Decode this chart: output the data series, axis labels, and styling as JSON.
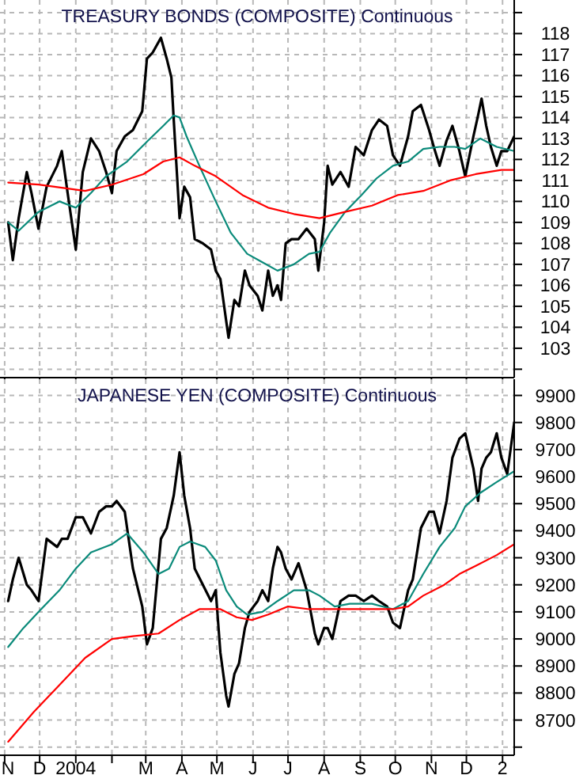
{
  "chart_data": [
    {
      "type": "line",
      "title": "TREASURY BONDS (COMPOSITE) Continuous",
      "x": [
        "2003-11-04",
        "2003-11-08",
        "2003-11-13",
        "2003-11-20",
        "2003-11-24",
        "2003-11-30",
        "2003-12-07",
        "2003-12-16",
        "2003-12-20",
        "2003-12-25",
        "2004-01-01",
        "2004-01-07",
        "2004-01-14",
        "2004-01-21",
        "2004-01-27",
        "2004-02-01",
        "2004-02-05",
        "2004-02-12",
        "2004-02-19",
        "2004-02-27",
        "2004-03-02",
        "2004-03-07",
        "2004-03-14",
        "2004-03-19",
        "2004-03-23",
        "2004-03-25",
        "2004-03-30",
        "2004-04-03",
        "2004-04-08",
        "2004-04-12",
        "2004-04-19",
        "2004-04-26",
        "2004-04-30",
        "2004-05-04",
        "2004-05-09",
        "2004-05-11",
        "2004-05-16",
        "2004-05-20",
        "2004-05-25",
        "2004-05-29",
        "2004-06-05",
        "2004-06-09",
        "2004-06-14",
        "2004-06-18",
        "2004-06-22",
        "2004-06-25",
        "2004-06-29",
        "2004-07-04",
        "2004-07-10",
        "2004-07-17",
        "2004-07-24",
        "2004-07-27",
        "2004-08-01",
        "2004-08-04",
        "2004-08-08",
        "2004-08-15",
        "2004-08-22",
        "2004-08-28",
        "2004-09-04",
        "2004-09-11",
        "2004-09-17",
        "2004-09-24",
        "2004-09-29",
        "2004-10-05",
        "2004-10-12",
        "2004-10-16",
        "2004-10-23",
        "2004-10-30",
        "2004-11-03",
        "2004-11-08",
        "2004-11-14",
        "2004-11-19",
        "2004-11-25",
        "2004-11-30",
        "2004-12-07",
        "2004-12-11",
        "2004-12-14",
        "2004-12-18",
        "2004-12-22",
        "2004-12-27",
        "2004-12-31",
        "2005-01-05",
        "2005-01-11"
      ],
      "series": [
        {
          "color": "#000000",
          "values": [
            109.0,
            107.2,
            109.2,
            111.4,
            110.4,
            108.7,
            110.7,
            111.7,
            112.4,
            110.4,
            107.7,
            111.4,
            113.0,
            112.4,
            111.4,
            110.4,
            112.4,
            113.1,
            113.4,
            114.3,
            116.8,
            117.1,
            117.8,
            116.8,
            115.9,
            113.9,
            109.2,
            110.7,
            110.2,
            108.2,
            108.0,
            107.7,
            106.7,
            106.3,
            104.3,
            103.5,
            105.3,
            105.0,
            106.7,
            106.0,
            105.5,
            104.8,
            106.7,
            105.5,
            106.0,
            105.3,
            108.0,
            108.2,
            108.2,
            108.7,
            108.2,
            106.7,
            109.0,
            111.7,
            110.8,
            111.4,
            110.7,
            112.6,
            112.2,
            113.4,
            113.9,
            113.6,
            112.2,
            111.7,
            113.1,
            114.3,
            114.6,
            113.4,
            112.6,
            111.7,
            112.9,
            113.6,
            112.4,
            111.2,
            113.1,
            114.1,
            114.9,
            113.6,
            112.6,
            111.7,
            112.4,
            112.4,
            113.1
          ]
        },
        {
          "color": "#0a8a7a",
          "x": [
            "2003-11-04",
            "2003-11-13",
            "2003-11-30",
            "2003-12-18",
            "2004-01-01",
            "2004-01-14",
            "2004-01-27",
            "2004-02-14",
            "2004-03-03",
            "2004-03-16",
            "2004-03-25",
            "2004-03-30",
            "2004-04-05",
            "2004-04-16",
            "2004-04-30",
            "2004-05-13",
            "2004-05-27",
            "2004-06-09",
            "2004-06-22",
            "2004-07-06",
            "2004-07-19",
            "2004-07-28",
            "2004-08-06",
            "2004-08-19",
            "2004-09-02",
            "2004-09-15",
            "2004-09-29",
            "2004-10-12",
            "2004-10-25",
            "2004-11-08",
            "2004-11-21",
            "2004-11-30",
            "2004-12-13",
            "2004-12-27",
            "2005-01-11"
          ],
          "values": [
            109.0,
            108.6,
            109.5,
            110.0,
            109.7,
            110.4,
            111.2,
            111.9,
            112.9,
            113.6,
            114.1,
            114.0,
            113.1,
            111.7,
            110.0,
            108.5,
            107.5,
            107.1,
            106.7,
            107.0,
            107.5,
            107.6,
            108.5,
            109.5,
            110.3,
            111.1,
            111.7,
            111.9,
            112.5,
            112.6,
            112.6,
            112.5,
            113.0,
            112.6,
            112.4
          ]
        },
        {
          "color": "#ff0000",
          "x": [
            "2003-11-04",
            "2003-11-30",
            "2004-01-09",
            "2004-02-01",
            "2004-02-28",
            "2004-03-16",
            "2004-03-30",
            "2004-04-12",
            "2004-04-30",
            "2004-05-23",
            "2004-06-14",
            "2004-07-06",
            "2004-07-28",
            "2004-08-19",
            "2004-09-11",
            "2004-10-03",
            "2004-10-25",
            "2004-11-17",
            "2004-12-09",
            "2004-12-31",
            "2005-01-11"
          ],
          "values": [
            110.9,
            110.8,
            110.5,
            110.8,
            111.3,
            111.9,
            112.1,
            111.7,
            111.2,
            110.3,
            109.7,
            109.4,
            109.2,
            109.5,
            109.8,
            110.3,
            110.5,
            111.0,
            111.3,
            111.5,
            111.5
          ]
        }
      ],
      "xlim": [
        "2003-10-28",
        "2005-01-11"
      ],
      "xticks": [
        "2003-11-01",
        "2003-12-01",
        "2004-01-01",
        "2004-02-01",
        "2004-03-01",
        "2004-04-01",
        "2004-05-01",
        "2004-06-01",
        "2004-07-01",
        "2004-08-01",
        "2004-09-01",
        "2004-10-01",
        "2004-11-01",
        "2004-12-01",
        "2005-01-01"
      ],
      "ylim": [
        101.6,
        119.6
      ],
      "yticks": [
        {
          "value": 102,
          "label": null
        },
        103,
        104,
        105,
        106,
        107,
        108,
        109,
        110,
        111,
        112,
        113,
        114,
        115,
        116,
        117,
        118,
        {
          "value": 119,
          "label": null
        }
      ],
      "tick_labels": "y",
      "grid": true
    },
    {
      "type": "line",
      "title": "JAPANESE YEN (COMPOSITE) Continuous",
      "x": [
        "2003-11-04",
        "2003-11-08",
        "2003-11-13",
        "2003-11-20",
        "2003-11-24",
        "2003-11-30",
        "2003-12-07",
        "2003-12-16",
        "2003-12-20",
        "2003-12-25",
        "2004-01-01",
        "2004-01-07",
        "2004-01-14",
        "2004-01-21",
        "2004-01-27",
        "2004-02-01",
        "2004-02-05",
        "2004-02-12",
        "2004-02-19",
        "2004-02-27",
        "2004-03-02",
        "2004-03-07",
        "2004-03-14",
        "2004-03-19",
        "2004-03-23",
        "2004-03-25",
        "2004-03-30",
        "2004-04-03",
        "2004-04-08",
        "2004-04-12",
        "2004-04-19",
        "2004-04-26",
        "2004-04-30",
        "2004-05-04",
        "2004-05-09",
        "2004-05-11",
        "2004-05-16",
        "2004-05-20",
        "2004-05-25",
        "2004-05-29",
        "2004-06-05",
        "2004-06-09",
        "2004-06-14",
        "2004-06-18",
        "2004-06-22",
        "2004-06-25",
        "2004-06-29",
        "2004-07-04",
        "2004-07-10",
        "2004-07-17",
        "2004-07-24",
        "2004-07-27",
        "2004-08-01",
        "2004-08-04",
        "2004-08-08",
        "2004-08-15",
        "2004-08-22",
        "2004-08-28",
        "2004-09-04",
        "2004-09-11",
        "2004-09-17",
        "2004-09-24",
        "2004-09-29",
        "2004-10-05",
        "2004-10-12",
        "2004-10-16",
        "2004-10-23",
        "2004-10-30",
        "2004-11-03",
        "2004-11-08",
        "2004-11-14",
        "2004-11-19",
        "2004-11-25",
        "2004-11-30",
        "2004-12-07",
        "2004-12-11",
        "2004-12-14",
        "2004-12-18",
        "2004-12-22",
        "2004-12-27",
        "2004-12-31",
        "2005-01-05",
        "2005-01-11"
      ],
      "series": [
        {
          "color": "#000000",
          "values": [
            9140,
            9220,
            9300,
            9200,
            9180,
            9140,
            9370,
            9340,
            9370,
            9370,
            9450,
            9450,
            9390,
            9470,
            9490,
            9490,
            9510,
            9470,
            9260,
            9120,
            8980,
            9040,
            9370,
            9410,
            9490,
            9530,
            9690,
            9530,
            9410,
            9260,
            9200,
            9140,
            9180,
            8950,
            8790,
            8750,
            8870,
            8910,
            9040,
            9100,
            9140,
            9180,
            9140,
            9260,
            9340,
            9320,
            9260,
            9220,
            9280,
            9180,
            9020,
            8980,
            9040,
            9040,
            9000,
            9140,
            9160,
            9160,
            9140,
            9160,
            9140,
            9120,
            9060,
            9040,
            9180,
            9220,
            9410,
            9470,
            9470,
            9390,
            9510,
            9670,
            9740,
            9760,
            9630,
            9510,
            9630,
            9670,
            9690,
            9760,
            9670,
            9610,
            9800
          ]
        },
        {
          "color": "#0a8a7a",
          "x": [
            "2003-11-04",
            "2003-11-17",
            "2003-11-30",
            "2003-12-18",
            "2004-01-01",
            "2004-01-14",
            "2004-02-01",
            "2004-02-14",
            "2004-02-28",
            "2004-03-12",
            "2004-03-21",
            "2004-03-30",
            "2004-04-08",
            "2004-04-21",
            "2004-04-30",
            "2004-05-09",
            "2004-05-18",
            "2004-05-27",
            "2004-06-09",
            "2004-06-22",
            "2004-07-06",
            "2004-07-19",
            "2004-07-28",
            "2004-08-10",
            "2004-08-23",
            "2004-09-11",
            "2004-09-29",
            "2004-10-12",
            "2004-10-25",
            "2004-11-08",
            "2004-11-21",
            "2004-11-30",
            "2004-12-13",
            "2004-12-27",
            "2005-01-11"
          ],
          "values": [
            8970,
            9040,
            9100,
            9180,
            9260,
            9320,
            9350,
            9390,
            9320,
            9240,
            9260,
            9340,
            9360,
            9340,
            9290,
            9180,
            9120,
            9090,
            9100,
            9140,
            9180,
            9180,
            9160,
            9120,
            9130,
            9130,
            9110,
            9140,
            9240,
            9340,
            9410,
            9490,
            9540,
            9580,
            9620
          ]
        },
        {
          "color": "#ff0000",
          "x": [
            "2003-11-04",
            "2003-11-26",
            "2003-12-18",
            "2004-01-09",
            "2004-02-01",
            "2004-02-19",
            "2004-03-12",
            "2004-03-30",
            "2004-04-16",
            "2004-05-04",
            "2004-05-18",
            "2004-05-31",
            "2004-06-14",
            "2004-07-01",
            "2004-07-19",
            "2004-08-06",
            "2004-08-23",
            "2004-09-11",
            "2004-09-29",
            "2004-10-12",
            "2004-10-25",
            "2004-11-12",
            "2004-11-25",
            "2004-12-09",
            "2004-12-27",
            "2005-01-11"
          ],
          "values": [
            8620,
            8730,
            8830,
            8930,
            9000,
            9010,
            9020,
            9070,
            9110,
            9110,
            9080,
            9070,
            9090,
            9120,
            9110,
            9110,
            9110,
            9110,
            9110,
            9120,
            9160,
            9200,
            9240,
            9270,
            9310,
            9350
          ]
        }
      ],
      "xlim": [
        "2003-10-28",
        "2005-01-11"
      ],
      "xticks": [
        {
          "value": "2003-11-01",
          "label": "N"
        },
        {
          "value": "2003-12-01",
          "label": "D"
        },
        {
          "value": "2004-01-01",
          "label": "2004"
        },
        {
          "value": "2004-02-01",
          "label": null
        },
        {
          "value": "2004-03-01",
          "label": "M"
        },
        {
          "value": "2004-04-01",
          "label": "A"
        },
        {
          "value": "2004-05-01",
          "label": "M"
        },
        {
          "value": "2004-06-01",
          "label": "J"
        },
        {
          "value": "2004-07-01",
          "label": "J"
        },
        {
          "value": "2004-08-01",
          "label": "A"
        },
        {
          "value": "2004-09-01",
          "label": "S"
        },
        {
          "value": "2004-10-01",
          "label": "O"
        },
        {
          "value": "2004-11-01",
          "label": "N"
        },
        {
          "value": "2004-12-01",
          "label": "D"
        },
        {
          "value": "2005-01-01",
          "label": "2"
        }
      ],
      "ylim": [
        8570,
        9960
      ],
      "yticks": [
        {
          "value": 8600,
          "label": null
        },
        8700,
        8800,
        8900,
        9000,
        9100,
        9200,
        9300,
        9400,
        9500,
        9600,
        9700,
        9800,
        9900
      ],
      "grid": true
    }
  ]
}
